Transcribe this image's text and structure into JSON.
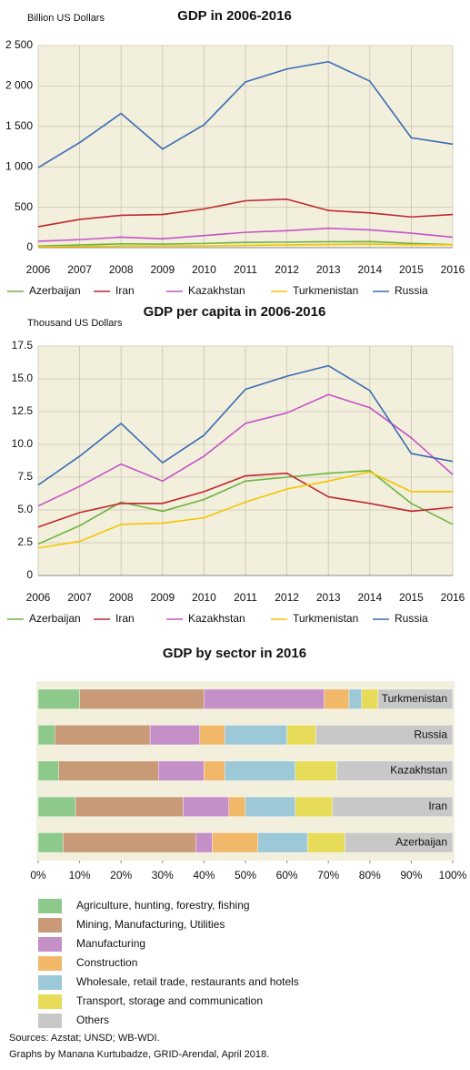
{
  "chart_data": [
    {
      "type": "line",
      "title": "GDP in 2006-2016",
      "y_label": "Billion US Dollars",
      "x": [
        2006,
        2007,
        2008,
        2009,
        2010,
        2011,
        2012,
        2013,
        2014,
        2015,
        2016
      ],
      "xlim": [
        2006,
        2016
      ],
      "xticks": [
        2006,
        2007,
        2008,
        2009,
        2010,
        2011,
        2012,
        2013,
        2014,
        2015,
        2016
      ],
      "ylim": [
        0,
        2500
      ],
      "yticks": [
        0,
        500,
        {
          "value": 1000,
          "label": "1 000"
        },
        {
          "value": 1500,
          "label": "1 500"
        },
        {
          "value": 2000,
          "label": "2 000"
        },
        {
          "value": 2500,
          "label": "2 500"
        }
      ],
      "grid": true,
      "series": [
        {
          "name": "Azerbaijan",
          "color": "#6db33f",
          "values": [
            20,
            33,
            48,
            44,
            52,
            66,
            69,
            74,
            75,
            53,
            38
          ]
        },
        {
          "name": "Iran",
          "color": "#c0272d",
          "values": [
            260,
            350,
            400,
            410,
            480,
            580,
            600,
            460,
            430,
            380,
            410
          ]
        },
        {
          "name": "Kazakhstan",
          "color": "#c653c6",
          "values": [
            80,
            100,
            130,
            110,
            150,
            190,
            210,
            240,
            220,
            180,
            130
          ]
        },
        {
          "name": "Turkmenistan",
          "color": "#f5c400",
          "values": [
            12,
            15,
            20,
            20,
            22,
            29,
            35,
            39,
            44,
            36,
            36
          ]
        },
        {
          "name": "Russia",
          "color": "#3a6bb5",
          "values": [
            990,
            1300,
            1660,
            1220,
            1520,
            2050,
            2210,
            2300,
            2060,
            1360,
            1280
          ]
        }
      ]
    },
    {
      "type": "line",
      "title": "GDP per capita in 2006-2016",
      "y_label": "Thousand US Dollars",
      "x": [
        2006,
        2007,
        2008,
        2009,
        2010,
        2011,
        2012,
        2013,
        2014,
        2015,
        2016
      ],
      "xlim": [
        2006,
        2016
      ],
      "xticks": [
        2006,
        2007,
        2008,
        2009,
        2010,
        2011,
        2012,
        2013,
        2014,
        2015,
        2016
      ],
      "ylim": [
        0,
        17.5
      ],
      "yticks": [
        0,
        2.5,
        {
          "value": 5,
          "label": "5.0"
        },
        7.5,
        {
          "value": 10,
          "label": "10.0"
        },
        12.5,
        {
          "value": 15,
          "label": "15.0"
        },
        17.5
      ],
      "grid": true,
      "series": [
        {
          "name": "Azerbaijan",
          "color": "#6db33f",
          "values": [
            2.4,
            3.8,
            5.6,
            4.9,
            5.8,
            7.2,
            7.5,
            7.8,
            8.0,
            5.5,
            3.9
          ]
        },
        {
          "name": "Iran",
          "color": "#c0272d",
          "values": [
            3.7,
            4.8,
            5.5,
            5.5,
            6.4,
            7.6,
            7.8,
            6.0,
            5.5,
            4.9,
            5.2
          ]
        },
        {
          "name": "Kazakhstan",
          "color": "#c653c6",
          "values": [
            5.3,
            6.8,
            8.5,
            7.2,
            9.1,
            11.6,
            12.4,
            13.8,
            12.8,
            10.5,
            7.7
          ]
        },
        {
          "name": "Turkmenistan",
          "color": "#f5c400",
          "values": [
            2.1,
            2.6,
            3.9,
            4.0,
            4.4,
            5.6,
            6.6,
            7.2,
            7.9,
            6.4,
            6.4
          ]
        },
        {
          "name": "Russia",
          "color": "#3a6bb5",
          "values": [
            6.9,
            9.1,
            11.6,
            8.6,
            10.7,
            14.2,
            15.2,
            16.0,
            14.1,
            9.3,
            8.7
          ]
        }
      ]
    },
    {
      "type": "stacked_barh",
      "title": "GDP by sector in 2016",
      "categories": [
        "Turkmenistan",
        "Russia",
        "Kazakhstan",
        "Iran",
        "Azerbaijan"
      ],
      "xlim": [
        0,
        100
      ],
      "xticks": [
        {
          "value": 0,
          "label": "0%"
        },
        {
          "value": 10,
          "label": "10%"
        },
        {
          "value": 20,
          "label": "20%"
        },
        {
          "value": 30,
          "label": "30%"
        },
        {
          "value": 40,
          "label": "40%"
        },
        {
          "value": 50,
          "label": "50%"
        },
        {
          "value": 60,
          "label": "60%"
        },
        {
          "value": 70,
          "label": "70%"
        },
        {
          "value": 80,
          "label": "80%"
        },
        {
          "value": 90,
          "label": "90%"
        },
        {
          "value": 100,
          "label": "100%"
        }
      ],
      "series": [
        {
          "name": "Agriculture, hunting, forestry, fishing",
          "color": "#8cc98a",
          "values": [
            10,
            4,
            5,
            9,
            6
          ]
        },
        {
          "name": "Mining, Manufacturing, Utilities",
          "color": "#c99a78",
          "values": [
            30,
            23,
            24,
            26,
            32
          ]
        },
        {
          "name": "Manufacturing",
          "color": "#c58fc8",
          "values": [
            29,
            12,
            11,
            11,
            4
          ]
        },
        {
          "name": "Construction",
          "color": "#f2b86a",
          "values": [
            6,
            6,
            5,
            4,
            11
          ]
        },
        {
          "name": "Wholesale, retail trade, restaurants and hotels",
          "color": "#9dc8d8",
          "values": [
            3,
            15,
            17,
            12,
            12
          ]
        },
        {
          "name": "Transport, storage and communication",
          "color": "#e6dc5a",
          "values": [
            4,
            7,
            10,
            9,
            9
          ]
        },
        {
          "name": "Others",
          "color": "#c8c8c8",
          "values": [
            18,
            33,
            28,
            29,
            26
          ]
        }
      ]
    }
  ],
  "sources": "Sources: Azstat; UNSD; WB-WDI.",
  "credits": "Graphs by Manana Kurtubadze, GRID-Arendal, April 2018."
}
